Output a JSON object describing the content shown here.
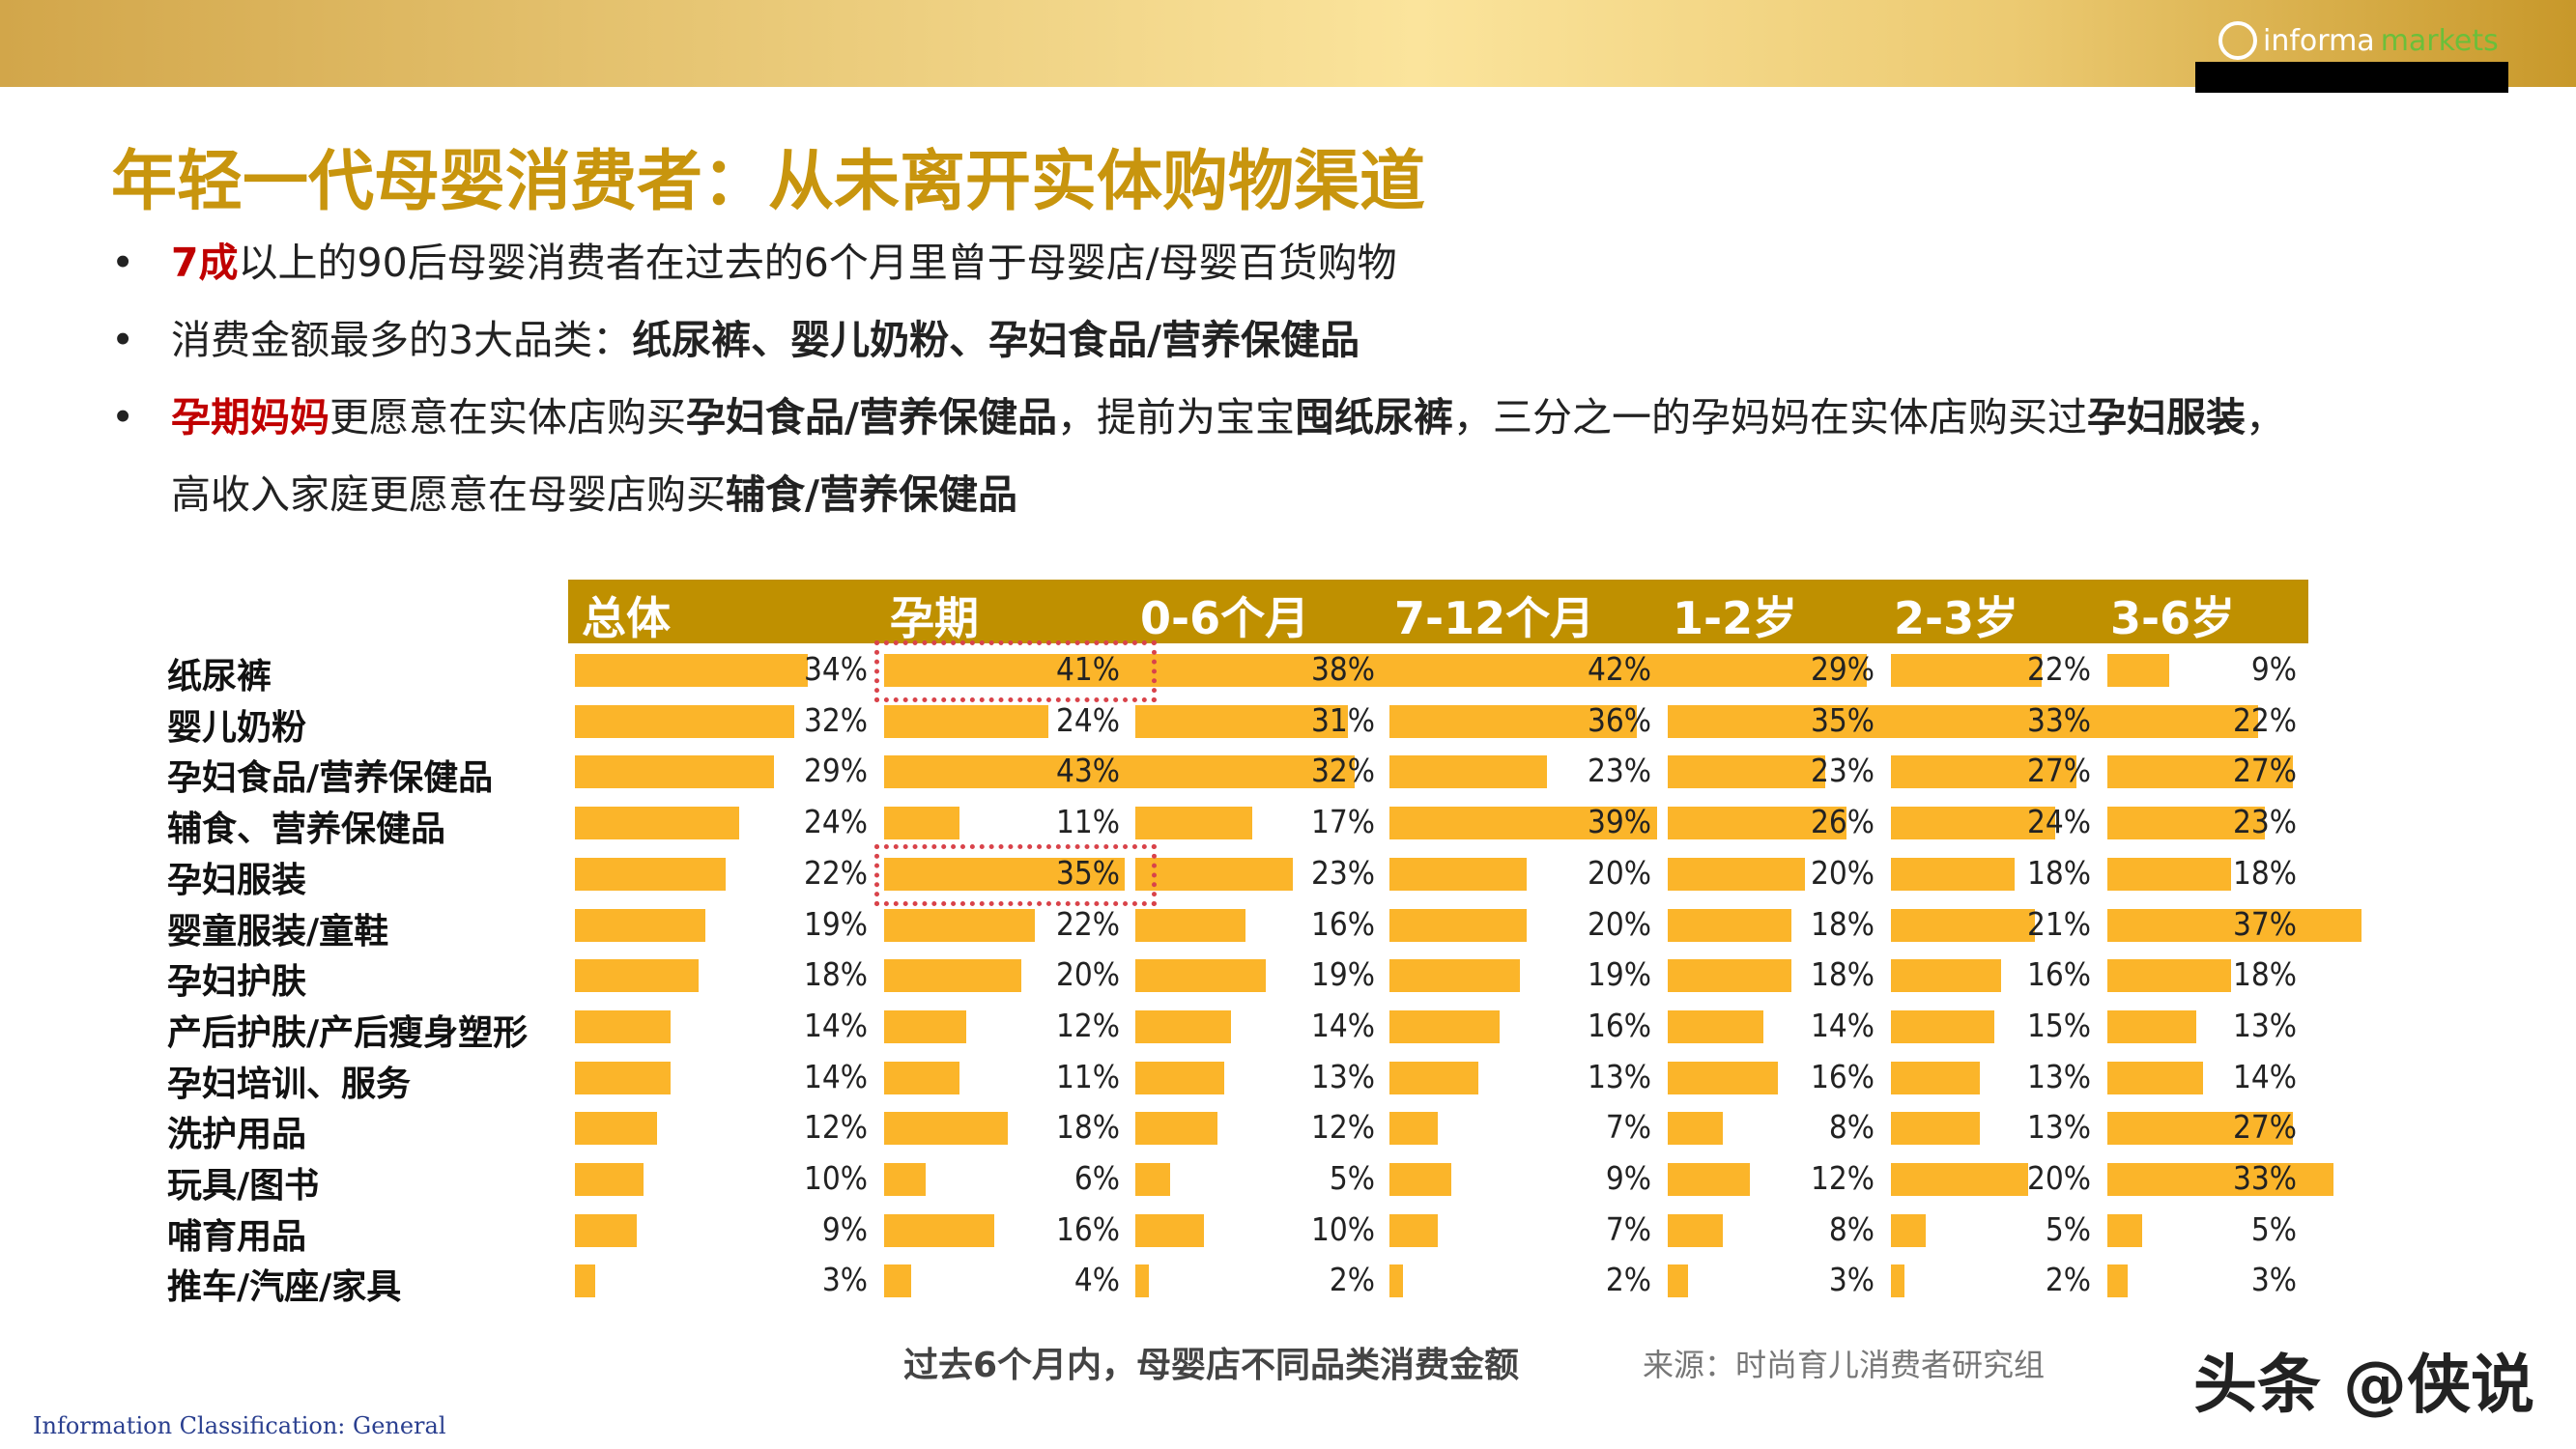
{
  "logo": {
    "text1": "informa",
    "text2": "markets"
  },
  "title": "年轻一代母婴消费者：从未离开实体购物渠道",
  "bullets": [
    [
      {
        "t": "7成",
        "s": "r"
      },
      {
        "t": "以上的90后母婴消费者在过去的6个月里曾于母婴店/母婴百货购物",
        "s": ""
      }
    ],
    [
      {
        "t": "消费金额最多的3大品类：",
        "s": ""
      },
      {
        "t": "纸尿裤、婴儿奶粉、孕妇食品/营养保健品",
        "s": "b"
      }
    ],
    [
      {
        "t": "孕期妈妈",
        "s": "r"
      },
      {
        "t": "更愿意在实体店购买",
        "s": ""
      },
      {
        "t": "孕妇食品/营养保健品",
        "s": "b"
      },
      {
        "t": "，提前为宝宝",
        "s": ""
      },
      {
        "t": "囤纸尿裤",
        "s": "b"
      },
      {
        "t": "，三分之一的孕妈妈在实体店购买过",
        "s": ""
      },
      {
        "t": "孕妇服装",
        "s": "b"
      },
      {
        "t": "，",
        "s": ""
      }
    ],
    [
      {
        "t": "高收入家庭更愿意在母婴店购买",
        "s": ""
      },
      {
        "t": "辅食/营养保健品",
        "s": "b"
      }
    ]
  ],
  "chart_data": {
    "type": "bar",
    "orientation": "horizontal",
    "title": "过去6个月内，母婴店不同品类消费金额",
    "source": "来源：时尚育儿消费者研究组",
    "categories": [
      "纸尿裤",
      "婴儿奶粉",
      "孕妇食品/营养保健品",
      "辅食、营养保健品",
      "孕妇服装",
      "婴童服装/童鞋",
      "孕妇护肤",
      "产后护肤/产后瘦身塑形",
      "孕妇培训、服务",
      "洗护用品",
      "玩具/图书",
      "哺育用品",
      "推车/汽座/家具"
    ],
    "series": [
      {
        "name": "总体",
        "values": [
          34,
          32,
          29,
          24,
          22,
          19,
          18,
          14,
          14,
          12,
          10,
          9,
          3
        ]
      },
      {
        "name": "孕期",
        "values": [
          41,
          24,
          43,
          11,
          35,
          22,
          20,
          12,
          11,
          18,
          6,
          16,
          4
        ]
      },
      {
        "name": "0-6个月",
        "values": [
          38,
          31,
          32,
          17,
          23,
          16,
          19,
          14,
          13,
          12,
          5,
          10,
          2
        ]
      },
      {
        "name": "7-12个月",
        "values": [
          42,
          36,
          23,
          39,
          20,
          20,
          19,
          16,
          13,
          7,
          9,
          7,
          2
        ]
      },
      {
        "name": "1-2岁",
        "values": [
          29,
          35,
          23,
          26,
          20,
          18,
          18,
          14,
          16,
          8,
          12,
          8,
          3
        ]
      },
      {
        "name": "2-3岁",
        "values": [
          22,
          33,
          27,
          24,
          18,
          21,
          16,
          15,
          13,
          13,
          20,
          5,
          2
        ]
      },
      {
        "name": "3-6岁",
        "values": [
          9,
          22,
          27,
          23,
          18,
          37,
          18,
          13,
          14,
          27,
          33,
          5,
          3
        ]
      }
    ],
    "unit": "%",
    "highlighted": [
      {
        "series": "孕期",
        "category": "纸尿裤"
      },
      {
        "series": "孕期",
        "category": "孕妇服装"
      }
    ],
    "colors": {
      "bar": "#fbb52a",
      "header": "#bf9000",
      "highlight": "#d9434a"
    }
  },
  "footer": {
    "classification": "Information Classification: General",
    "watermark": "头条 @侠说"
  }
}
